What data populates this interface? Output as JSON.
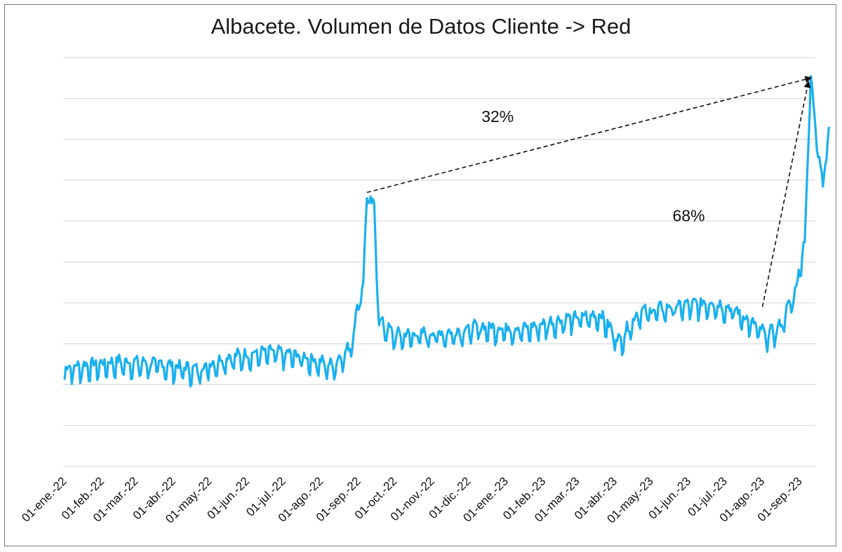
{
  "chart_data": {
    "type": "line",
    "title": "Albacete. Volumen de Datos Cliente -> Red",
    "xlabel": "",
    "ylabel": "",
    "x_tick_labels": [
      "01-ene.-22",
      "01-feb.-22",
      "01-mar.-22",
      "01-abr.-22",
      "01-may.-22",
      "01-jun.-22",
      "01-jul.-22",
      "01-ago.-22",
      "01-sep.-22",
      "01-oct.-22",
      "01-nov.-22",
      "01-dic.-22",
      "01-ene.-23",
      "01-feb.-23",
      "01-mar.-23",
      "01-abr.-23",
      "01-may.-23",
      "01-jun.-23",
      "01-jul.-23",
      "01-ago.-23",
      "01-sep.-23"
    ],
    "x_range": [
      "2022-01-01",
      "2023-09-25"
    ],
    "y_tick_labels_shown": false,
    "ylim": [
      0,
      10
    ],
    "gridlines": "horizontal",
    "legend": "none",
    "series_color": "#1ab0ef",
    "series": [
      {
        "daily_pattern_amplitude": 0.45,
        "anchors": [
          {
            "x": "2022-01-01",
            "y": 2.35
          },
          {
            "x": "2022-02-15",
            "y": 2.5
          },
          {
            "x": "2022-03-20",
            "y": 2.45
          },
          {
            "x": "2022-04-20",
            "y": 2.3
          },
          {
            "x": "2022-05-15",
            "y": 2.6
          },
          {
            "x": "2022-06-20",
            "y": 2.75
          },
          {
            "x": "2022-07-15",
            "y": 2.65
          },
          {
            "x": "2022-08-10",
            "y": 2.4
          },
          {
            "x": "2022-08-25",
            "y": 2.85
          },
          {
            "x": "2022-09-05",
            "y": 4.5
          },
          {
            "x": "2022-09-08",
            "y": 6.6
          },
          {
            "x": "2022-09-14",
            "y": 6.3
          },
          {
            "x": "2022-09-18",
            "y": 3.5
          },
          {
            "x": "2022-10-01",
            "y": 3.15
          },
          {
            "x": "2022-11-15",
            "y": 3.2
          },
          {
            "x": "2022-12-10",
            "y": 3.35
          },
          {
            "x": "2023-01-15",
            "y": 3.3
          },
          {
            "x": "2023-02-20",
            "y": 3.55
          },
          {
            "x": "2023-03-20",
            "y": 3.65
          },
          {
            "x": "2023-04-05",
            "y": 3.0
          },
          {
            "x": "2023-04-20",
            "y": 3.7
          },
          {
            "x": "2023-05-20",
            "y": 3.85
          },
          {
            "x": "2023-06-20",
            "y": 3.95
          },
          {
            "x": "2023-07-10",
            "y": 3.75
          },
          {
            "x": "2023-07-25",
            "y": 3.4
          },
          {
            "x": "2023-08-05",
            "y": 3.15
          },
          {
            "x": "2023-08-15",
            "y": 3.35
          },
          {
            "x": "2023-08-28",
            "y": 4.2
          },
          {
            "x": "2023-09-05",
            "y": 5.5
          },
          {
            "x": "2023-09-10",
            "y": 9.5
          },
          {
            "x": "2023-09-15",
            "y": 8.0
          },
          {
            "x": "2023-09-20",
            "y": 6.9
          },
          {
            "x": "2023-09-25",
            "y": 8.2
          }
        ]
      }
    ],
    "annotations": [
      {
        "text": "32%",
        "from": {
          "x": "2022-09-08",
          "y": 6.7
        },
        "to": {
          "x": "2023-09-10",
          "y": 9.5
        },
        "style": "dashed-arrow"
      },
      {
        "text": "68%",
        "from": {
          "x": "2023-08-01",
          "y": 3.9
        },
        "to": {
          "x": "2023-09-08",
          "y": 9.4
        },
        "style": "dashed-arrow"
      }
    ]
  }
}
